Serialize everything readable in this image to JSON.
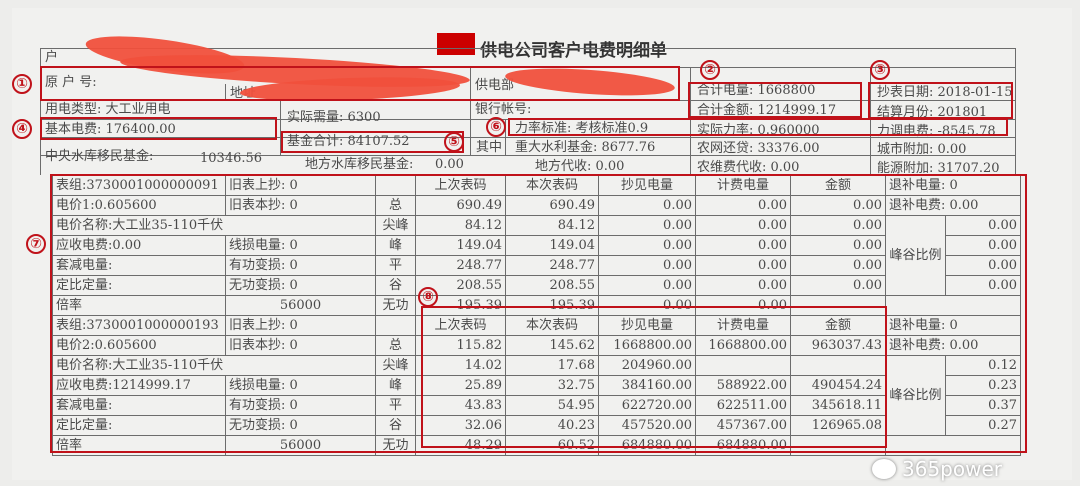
{
  "title": "供电公司客户电费明细单",
  "header": {
    "hu": "户",
    "yuan_hu_hao": "原 户 号:",
    "di_zhi": "地址",
    "gong_dian_bu": "供电部",
    "yong_dian_lei_xing": "用电类型: 大工业用电",
    "yin_hang_zhang_hao": "银行帐号:",
    "shi_ji_xu_liang": "实际需量: 6300",
    "ji_ben_dian_fei": "基本电费: 176400.00",
    "ji_jin_he_ji": "基金合计: 84107.52",
    "qi_zhong": "其中",
    "zhong_yang_label": "中央水库移民基金:",
    "zhong_yang_value": "10346.56",
    "di_fang_label": "地方水库移民基金:",
    "di_fang_value": "0.00",
    "he_ji_dian_liang": "合计电量: 1668800",
    "he_ji_jin_e": "合计金额: 1214999.17",
    "chao_biao_ri_qi": "抄表日期: 2018-01-15",
    "jie_suan_yue_fen": "结算月份: 201801",
    "li_lv_biao_zhun": "力率标准: 考核标准0.9",
    "shi_ji_li_lv": "实际力率: 0.960000",
    "li_tiao_dian_fei": "力调电费: -8545.78",
    "zhong_da_shui_li": "重大水利基金: 8677.76",
    "nong_wang_huan_dai": "农网还贷: 33376.00",
    "cheng_shi_fu_jia": "城市附加: 0.00",
    "di_fang_dai_shou": "地方代收: 0.00",
    "nong_wei_fei": "农维费代收: 0.00",
    "neng_yuan_fu_jia": "能源附加: 31707.20"
  },
  "columns": [
    "上次表码",
    "本次表码",
    "抄见电量",
    "计费电量",
    "金额"
  ],
  "peak_valley_label": "峰谷比例",
  "meter_groups": [
    {
      "group": "表组:3730001000000091",
      "old_upper": "旧表上抄: 0",
      "price": "电价1:0.605600",
      "old_current": "旧表本抄: 0",
      "price_name": "电价名称:大工业35-110千伏",
      "receivable": "应收电费:0.00",
      "line_loss": "线损电量: 0",
      "deduct": "套减电量:",
      "active_loss": "有功变损: 0",
      "fixed_ratio": "定比定量:",
      "reactive_loss": "无功变损: 0",
      "multiplier_label": "倍率",
      "multiplier": "56000",
      "refund_energy": "退补电量: 0",
      "refund_fee": "退补电费:  0.00",
      "rows": [
        {
          "period": "总",
          "values": [
            "690.49",
            "690.49",
            "0.00",
            "0.00",
            "0.00"
          ]
        },
        {
          "period": "尖峰",
          "values": [
            "84.12",
            "84.12",
            "0.00",
            "0.00",
            "0.00"
          ],
          "ratio": "0.00"
        },
        {
          "period": "峰",
          "values": [
            "149.04",
            "149.04",
            "0.00",
            "0.00",
            "0.00"
          ],
          "ratio": "0.00"
        },
        {
          "period": "平",
          "values": [
            "248.77",
            "248.77",
            "0.00",
            "0.00",
            "0.00"
          ],
          "ratio": "0.00"
        },
        {
          "period": "谷",
          "values": [
            "208.55",
            "208.55",
            "0.00",
            "0.00",
            "0.00"
          ],
          "ratio": "0.00"
        },
        {
          "period": "无功",
          "values": [
            "195.39",
            "195.39",
            "0.00",
            "0.00",
            ""
          ]
        }
      ]
    },
    {
      "group": "表组:3730001000000193",
      "old_upper": "旧表上抄: 0",
      "price": "电价2:0.605600",
      "old_current": "旧表本抄: 0",
      "price_name": "电价名称:大工业35-110千伏",
      "receivable": "应收电费:1214999.17",
      "line_loss": "线损电量: 0",
      "deduct": "套减电量:",
      "active_loss": "有功变损: 0",
      "fixed_ratio": "定比定量:",
      "reactive_loss": "无功变损: 0",
      "multiplier_label": "倍率",
      "multiplier": "56000",
      "refund_energy": "退补电量: 0",
      "refund_fee": "退补电费:  0.00",
      "rows": [
        {
          "period": "总",
          "values": [
            "115.82",
            "145.62",
            "1668800.00",
            "1668800.00",
            "963037.43"
          ]
        },
        {
          "period": "尖峰",
          "values": [
            "14.02",
            "17.68",
            "204960.00",
            "",
            ""
          ],
          "ratio": "0.12"
        },
        {
          "period": "峰",
          "values": [
            "25.89",
            "32.75",
            "384160.00",
            "588922.00",
            "490454.24"
          ],
          "ratio": "0.23"
        },
        {
          "period": "平",
          "values": [
            "43.83",
            "54.95",
            "622720.00",
            "622511.00",
            "345618.11"
          ],
          "ratio": "0.37"
        },
        {
          "period": "谷",
          "values": [
            "32.06",
            "40.23",
            "457520.00",
            "457367.00",
            "126965.08"
          ],
          "ratio": "0.27"
        },
        {
          "period": "无功",
          "values": [
            "48.29",
            "60.52",
            "684880.00",
            "684880.00",
            ""
          ]
        }
      ]
    }
  ],
  "annotations": [
    "①",
    "②",
    "③",
    "④",
    "⑤",
    "⑥",
    "⑦",
    "⑧"
  ],
  "watermark": "365power",
  "colors": {
    "annotation": "#c0121a",
    "redaction": "#f0503c",
    "title_mark": "#cc0000"
  }
}
